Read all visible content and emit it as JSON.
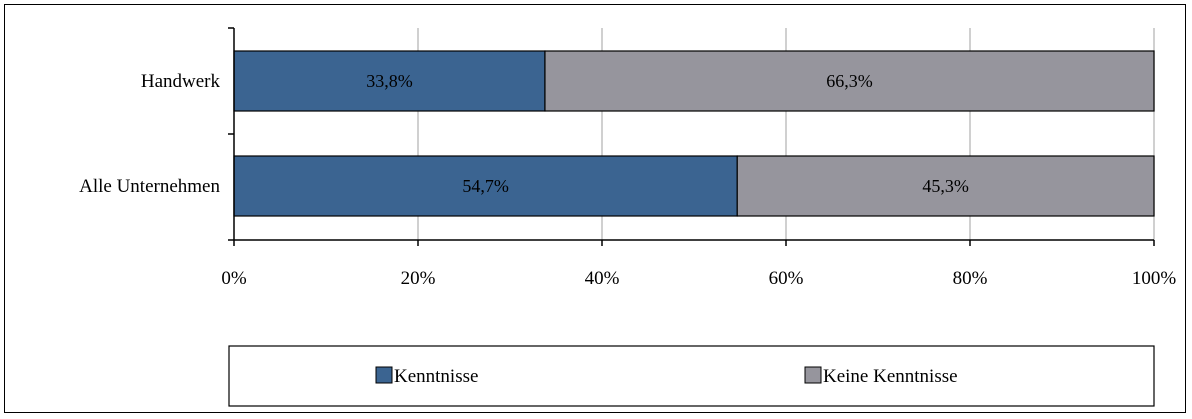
{
  "chart_data": {
    "type": "bar",
    "orientation": "horizontal",
    "stacked": true,
    "percent_stacked": true,
    "categories": [
      "Handwerk",
      "Alle Unternehmen"
    ],
    "series": [
      {
        "name": "Kenntnisse",
        "values": [
          33.8,
          54.7
        ],
        "labels": [
          "33,8%",
          "54,7%"
        ],
        "color": "#3b6491"
      },
      {
        "name": "Keine Kenntnisse",
        "values": [
          66.3,
          45.3
        ],
        "labels": [
          "66,3%",
          "45,3%"
        ],
        "color": "#96959d"
      }
    ],
    "xlim": [
      0,
      100
    ],
    "xticks": [
      0,
      20,
      40,
      60,
      80,
      100
    ],
    "xtick_labels": [
      "0%",
      "20%",
      "40%",
      "60%",
      "80%",
      "100%"
    ],
    "grid": "vertical",
    "legend": "bottom"
  }
}
